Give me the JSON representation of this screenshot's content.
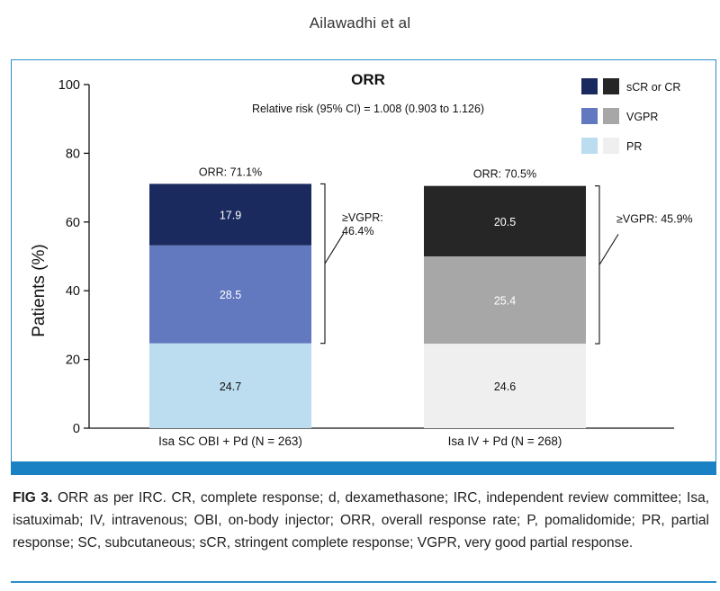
{
  "header": {
    "running_head": "Ailawadhi et al"
  },
  "chart_data": {
    "type": "bar",
    "stacked": true,
    "title": "ORR",
    "subtitle": "Relative risk (95% CI) = 1.008 (0.903 to 1.126)",
    "ylabel": "Patients (%)",
    "xlabel": "",
    "ylim": [
      0,
      100
    ],
    "yticks": [
      0,
      20,
      40,
      60,
      80,
      100
    ],
    "grid": false,
    "categories": [
      "Isa SC OBI + Pd (N = 263)",
      "Isa IV + Pd (N = 268)"
    ],
    "series": [
      {
        "name": "PR",
        "values": [
          24.7,
          24.6
        ],
        "colors": [
          "#bcdcf0",
          "#efefef"
        ]
      },
      {
        "name": "VGPR",
        "values": [
          28.5,
          25.4
        ],
        "colors": [
          "#6278bf",
          "#a7a7a7"
        ]
      },
      {
        "name": "sCR or CR",
        "values": [
          17.9,
          20.5
        ],
        "colors": [
          "#1b2a5e",
          "#262626"
        ]
      }
    ],
    "totals_labels": [
      "ORR: 71.1%",
      "ORR: 70.5%"
    ],
    "vgpr_labels": [
      {
        "line1": "≥VGPR:",
        "line2": "46.4%"
      },
      {
        "line1": "≥VGPR: 45.9%"
      }
    ],
    "legend": {
      "placement": "top-right",
      "entries": [
        {
          "label": "sCR or CR",
          "color_a": "#1b2a5e",
          "color_b": "#262626"
        },
        {
          "label": "VGPR",
          "color_a": "#6278bf",
          "color_b": "#a7a7a7"
        },
        {
          "label": "PR",
          "color_a": "#bcdcf0",
          "color_b": "#efefef"
        }
      ]
    }
  },
  "caption": {
    "label": "FIG 3.",
    "text": "ORR as per IRC. CR, complete response; d, dexamethasone; IRC, independent review committee; Isa, isatuximab; IV, intravenous; OBI, on-body injector; ORR, overall response rate; P, pomalidomide; PR, partial response; SC, subcutaneous; sCR, stringent complete response; VGPR, very good partial response."
  }
}
